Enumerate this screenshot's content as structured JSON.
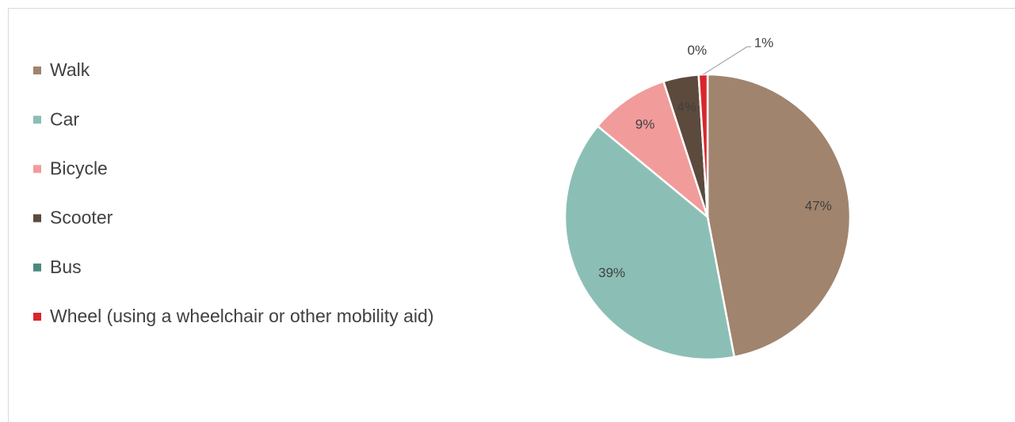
{
  "chart_data": {
    "type": "pie",
    "categories": [
      "Walk",
      "Car",
      "Bicycle",
      "Scooter",
      "Bus",
      "Wheel (using a wheelchair or other mobility aid)"
    ],
    "values": [
      47,
      39,
      9,
      4,
      0,
      1
    ],
    "value_labels": [
      "47%",
      "39%",
      "9%",
      "4%",
      "0%",
      "1%"
    ],
    "colors": [
      "#a0846e",
      "#8bbfb5",
      "#f29b9b",
      "#5c4a3d",
      "#4a8a7e",
      "#d9262b"
    ],
    "legend": "left"
  }
}
